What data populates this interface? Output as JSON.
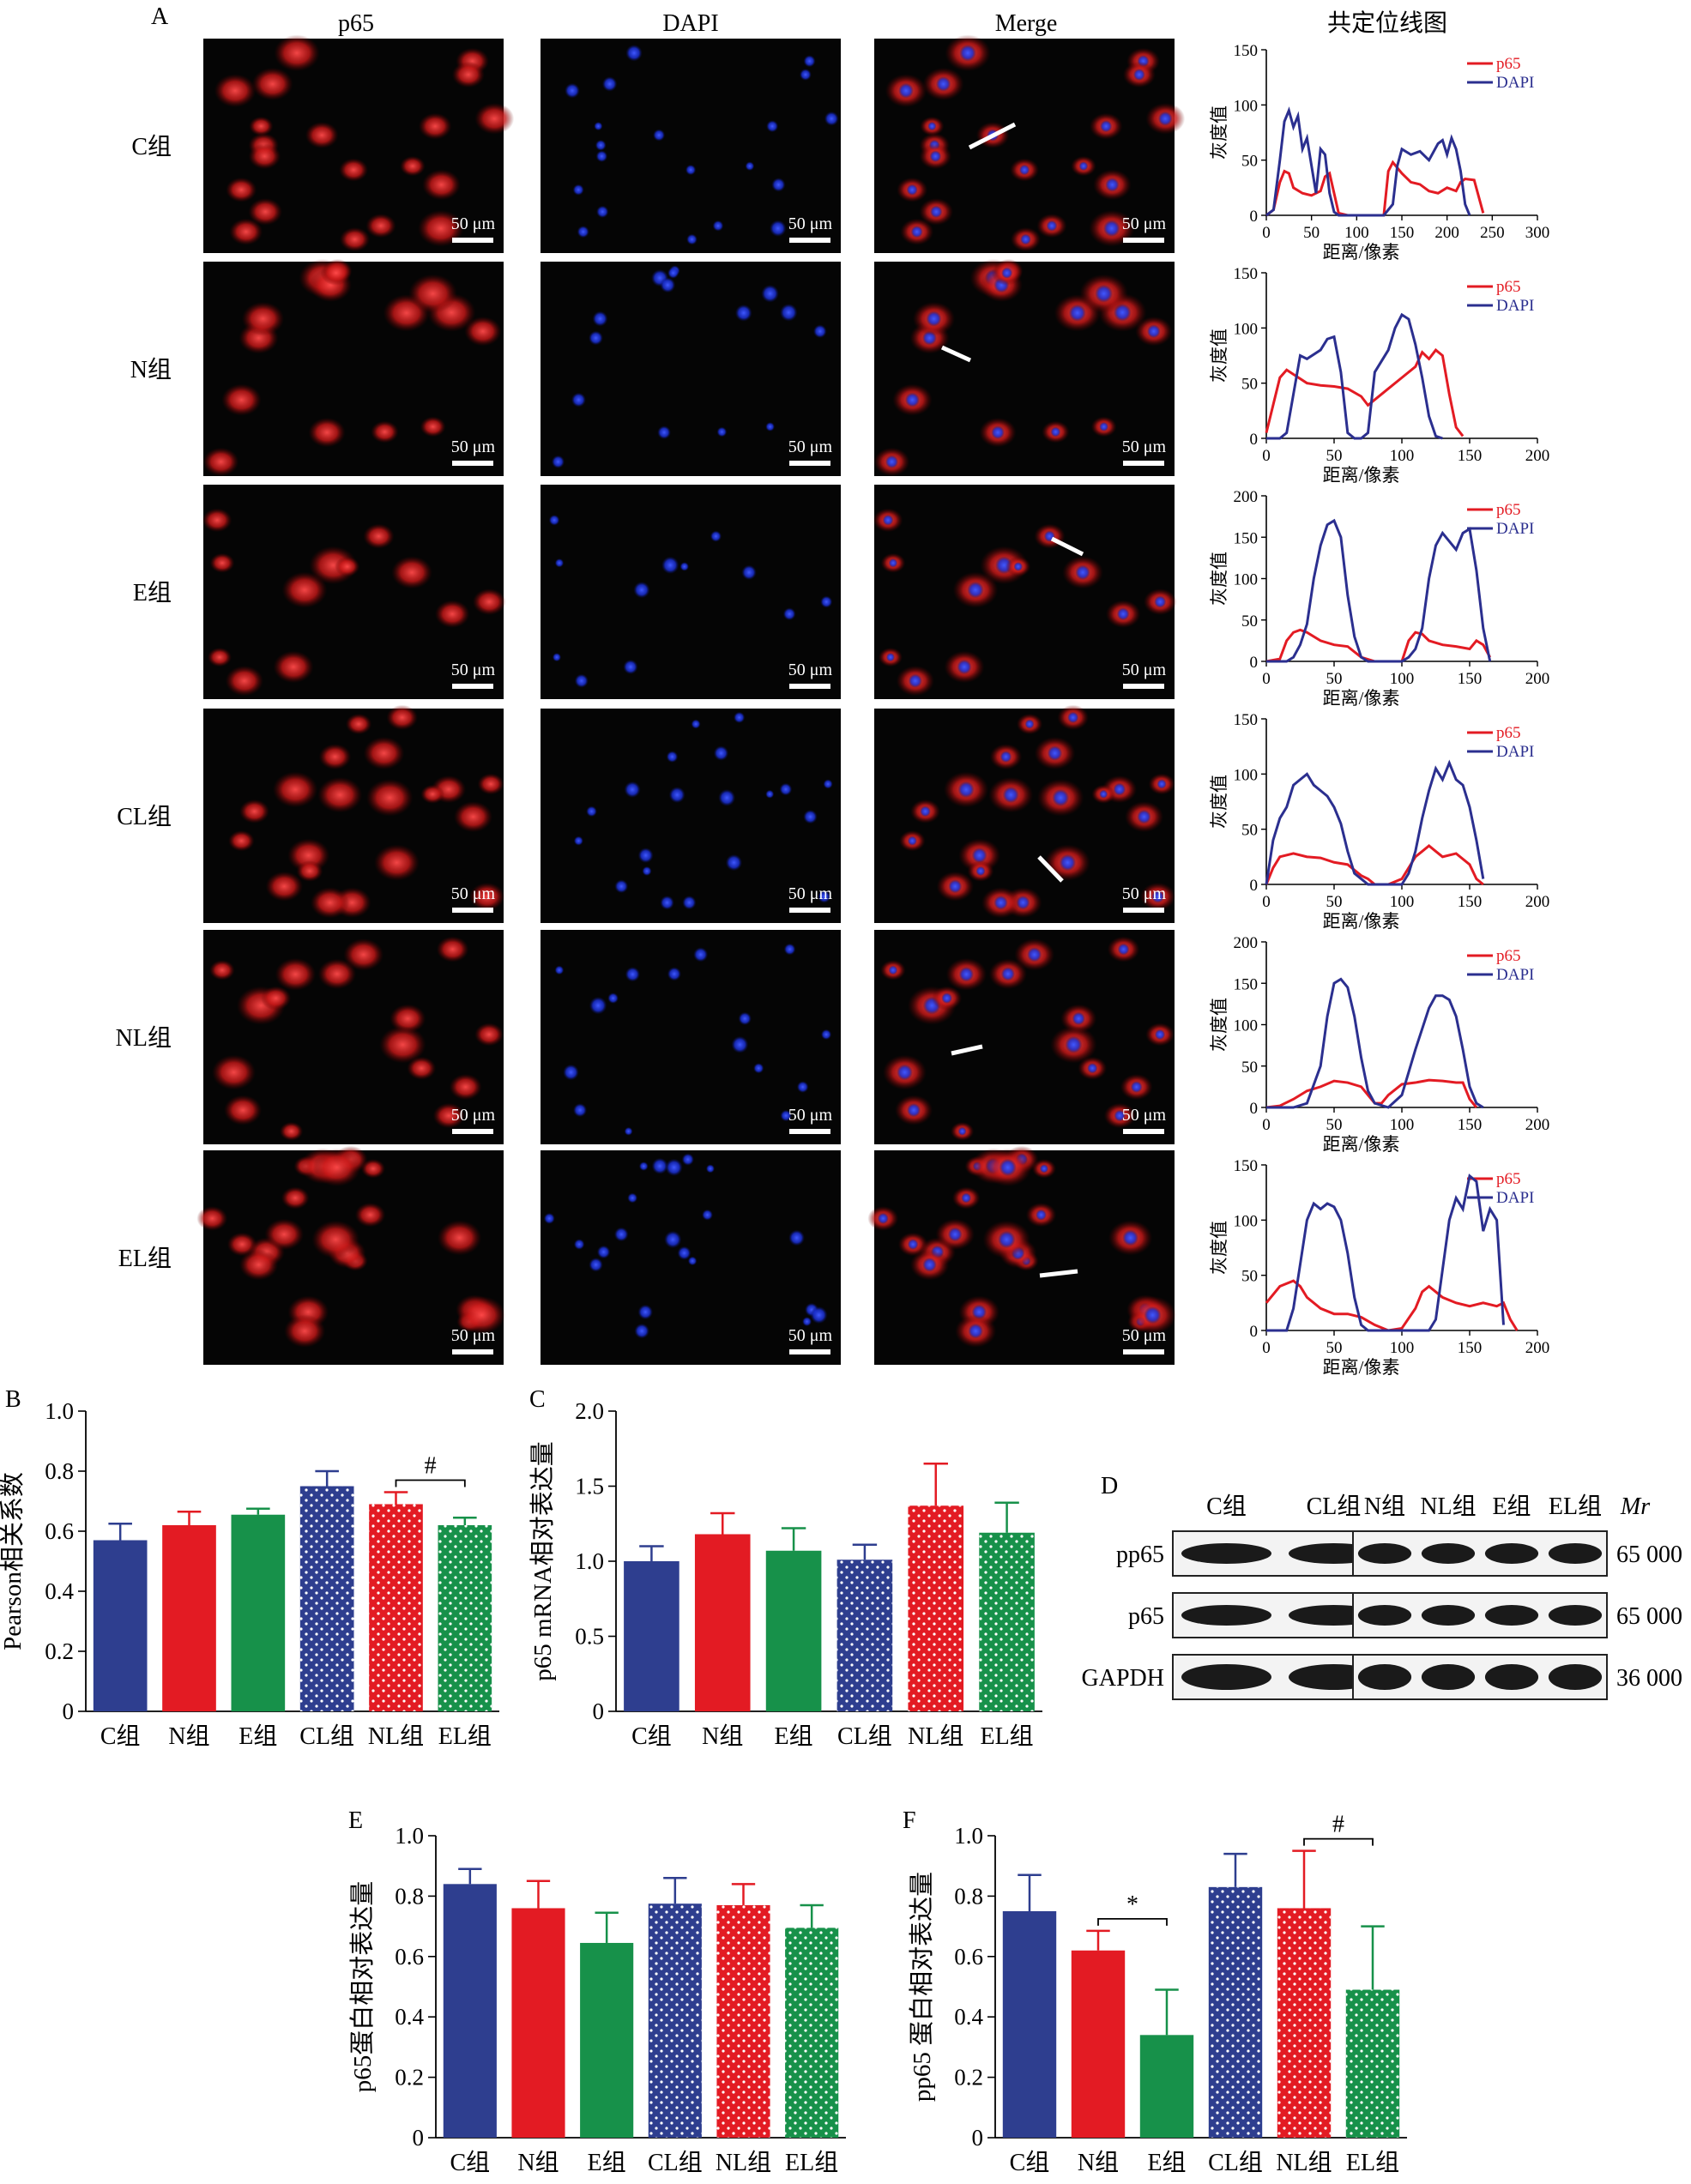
{
  "panel_labels": {
    "A": "A",
    "B": "B",
    "C": "C",
    "D": "D",
    "E": "E",
    "F": "F"
  },
  "panel_a": {
    "column_headers": [
      "p65",
      "DAPI",
      "Merge",
      "共定位线图"
    ],
    "row_labels": [
      "C组",
      "N组",
      "E组",
      "CL组",
      "NL组",
      "EL组"
    ],
    "scale_bar_label": "50 μm",
    "colors": {
      "p65": "#e31b23",
      "dapi": "#2b2f8f",
      "background": "#050505",
      "line": "#ffffff"
    }
  },
  "chart_data": [
    {
      "type": "line",
      "panel": "A",
      "row": "C组",
      "xlabel": "距离/像素",
      "ylabel": "灰度值",
      "xlim": [
        0,
        300
      ],
      "xticks": [
        0,
        50,
        100,
        150,
        200,
        250,
        300
      ],
      "ylim": [
        0,
        150
      ],
      "yticks": [
        0,
        50,
        100,
        150
      ],
      "series": [
        {
          "name": "p65",
          "color": "#e31b23",
          "x": [
            0,
            8,
            15,
            20,
            25,
            30,
            40,
            50,
            60,
            65,
            70,
            75,
            80,
            90,
            100,
            110,
            120,
            130,
            135,
            140,
            150,
            160,
            170,
            180,
            190,
            200,
            210,
            215,
            220,
            230,
            240
          ],
          "y": [
            0,
            5,
            30,
            40,
            38,
            25,
            20,
            18,
            22,
            35,
            38,
            20,
            2,
            0,
            0,
            0,
            0,
            0,
            40,
            48,
            38,
            30,
            28,
            22,
            20,
            25,
            22,
            30,
            33,
            32,
            2
          ]
        },
        {
          "name": "DAPI",
          "color": "#2b2f8f",
          "x": [
            0,
            8,
            15,
            20,
            25,
            30,
            35,
            40,
            45,
            50,
            55,
            60,
            65,
            70,
            75,
            80,
            100,
            120,
            130,
            140,
            145,
            150,
            160,
            170,
            180,
            190,
            195,
            200,
            205,
            210,
            215,
            220,
            225
          ],
          "y": [
            0,
            5,
            50,
            85,
            95,
            80,
            90,
            60,
            70,
            45,
            20,
            60,
            55,
            20,
            3,
            0,
            0,
            0,
            0,
            10,
            45,
            60,
            55,
            58,
            50,
            65,
            68,
            55,
            70,
            60,
            40,
            10,
            0
          ]
        }
      ]
    },
    {
      "type": "line",
      "panel": "A",
      "row": "N组",
      "xlabel": "距离/像素",
      "ylabel": "灰度值",
      "xlim": [
        0,
        200
      ],
      "xticks": [
        0,
        50,
        100,
        150,
        200
      ],
      "ylim": [
        0,
        150
      ],
      "yticks": [
        0,
        50,
        100,
        150
      ],
      "series": [
        {
          "name": "p65",
          "color": "#e31b23",
          "x": [
            0,
            5,
            10,
            15,
            20,
            30,
            40,
            50,
            60,
            70,
            75,
            80,
            90,
            100,
            110,
            115,
            120,
            125,
            130,
            135,
            140,
            145
          ],
          "y": [
            5,
            30,
            55,
            62,
            58,
            50,
            48,
            47,
            45,
            38,
            30,
            35,
            45,
            55,
            65,
            78,
            72,
            80,
            75,
            40,
            10,
            2
          ]
        },
        {
          "name": "DAPI",
          "color": "#2b2f8f",
          "x": [
            0,
            10,
            15,
            20,
            25,
            30,
            40,
            45,
            50,
            55,
            60,
            65,
            70,
            75,
            80,
            90,
            95,
            100,
            105,
            110,
            115,
            120,
            125,
            130
          ],
          "y": [
            0,
            0,
            5,
            40,
            75,
            72,
            80,
            90,
            92,
            60,
            5,
            0,
            0,
            5,
            60,
            80,
            100,
            112,
            108,
            85,
            55,
            20,
            2,
            0
          ]
        }
      ]
    },
    {
      "type": "line",
      "panel": "A",
      "row": "E组",
      "xlabel": "距离/像素",
      "ylabel": "灰度值",
      "xlim": [
        0,
        200
      ],
      "xticks": [
        0,
        50,
        100,
        150,
        200
      ],
      "ylim": [
        0,
        200
      ],
      "yticks": [
        0,
        50,
        100,
        150,
        200
      ],
      "series": [
        {
          "name": "p65",
          "color": "#e31b23",
          "x": [
            0,
            10,
            15,
            20,
            25,
            30,
            40,
            50,
            60,
            70,
            80,
            90,
            100,
            105,
            110,
            115,
            120,
            130,
            140,
            150,
            155,
            160,
            165
          ],
          "y": [
            0,
            3,
            25,
            35,
            38,
            35,
            25,
            20,
            18,
            5,
            0,
            0,
            0,
            25,
            35,
            33,
            25,
            20,
            18,
            15,
            25,
            20,
            5
          ]
        },
        {
          "name": "DAPI",
          "color": "#2b2f8f",
          "x": [
            0,
            15,
            20,
            25,
            30,
            35,
            40,
            45,
            50,
            55,
            60,
            65,
            70,
            75,
            100,
            105,
            110,
            115,
            120,
            125,
            130,
            135,
            140,
            145,
            150,
            155,
            160,
            165
          ],
          "y": [
            0,
            0,
            5,
            20,
            45,
            100,
            140,
            165,
            170,
            150,
            80,
            30,
            5,
            0,
            0,
            5,
            15,
            40,
            100,
            140,
            155,
            145,
            135,
            155,
            160,
            110,
            40,
            0
          ]
        }
      ]
    },
    {
      "type": "line",
      "panel": "A",
      "row": "CL组",
      "xlabel": "距离/像素",
      "ylabel": "灰度值",
      "xlim": [
        0,
        200
      ],
      "xticks": [
        0,
        50,
        100,
        150,
        200
      ],
      "ylim": [
        0,
        150
      ],
      "yticks": [
        0,
        50,
        100,
        150
      ],
      "series": [
        {
          "name": "p65",
          "color": "#e31b23",
          "x": [
            0,
            5,
            10,
            20,
            30,
            40,
            50,
            60,
            70,
            75,
            80,
            90,
            100,
            110,
            115,
            120,
            125,
            130,
            140,
            150,
            155,
            160
          ],
          "y": [
            0,
            15,
            25,
            28,
            25,
            24,
            20,
            18,
            8,
            5,
            0,
            0,
            5,
            25,
            30,
            35,
            30,
            25,
            28,
            18,
            5,
            0
          ]
        },
        {
          "name": "DAPI",
          "color": "#2b2f8f",
          "x": [
            0,
            5,
            10,
            15,
            20,
            25,
            30,
            35,
            40,
            45,
            50,
            55,
            60,
            65,
            70,
            75,
            80,
            100,
            105,
            110,
            115,
            120,
            125,
            130,
            135,
            140,
            145,
            150,
            155,
            160
          ],
          "y": [
            0,
            40,
            60,
            70,
            90,
            95,
            100,
            90,
            85,
            80,
            70,
            55,
            30,
            10,
            5,
            0,
            0,
            0,
            10,
            30,
            60,
            85,
            105,
            95,
            110,
            95,
            90,
            70,
            40,
            5
          ]
        }
      ]
    },
    {
      "type": "line",
      "panel": "A",
      "row": "NL组",
      "xlabel": "距离/像素",
      "ylabel": "灰度值",
      "xlim": [
        0,
        200
      ],
      "xticks": [
        0,
        50,
        100,
        150,
        200
      ],
      "ylim": [
        0,
        200
      ],
      "yticks": [
        0,
        50,
        100,
        150,
        200
      ],
      "series": [
        {
          "name": "p65",
          "color": "#e31b23",
          "x": [
            0,
            10,
            20,
            30,
            40,
            50,
            60,
            70,
            75,
            80,
            85,
            90,
            100,
            110,
            120,
            130,
            140,
            145,
            150,
            155
          ],
          "y": [
            0,
            2,
            10,
            20,
            25,
            32,
            30,
            25,
            15,
            5,
            5,
            15,
            28,
            30,
            33,
            32,
            30,
            30,
            10,
            0
          ]
        },
        {
          "name": "DAPI",
          "color": "#2b2f8f",
          "x": [
            0,
            20,
            30,
            40,
            45,
            50,
            55,
            60,
            65,
            70,
            75,
            80,
            90,
            100,
            110,
            120,
            125,
            130,
            135,
            140,
            145,
            150,
            155,
            160
          ],
          "y": [
            0,
            0,
            5,
            50,
            110,
            150,
            155,
            145,
            110,
            60,
            20,
            5,
            0,
            15,
            70,
            120,
            135,
            135,
            130,
            110,
            70,
            25,
            5,
            0
          ]
        }
      ]
    },
    {
      "type": "line",
      "panel": "A",
      "row": "EL组",
      "xlabel": "距离/像素",
      "ylabel": "灰度值",
      "xlim": [
        0,
        200
      ],
      "xticks": [
        0,
        50,
        100,
        150,
        200
      ],
      "ylim": [
        0,
        150
      ],
      "yticks": [
        0,
        50,
        100,
        150
      ],
      "series": [
        {
          "name": "p65",
          "color": "#e31b23",
          "x": [
            0,
            10,
            20,
            25,
            30,
            40,
            50,
            60,
            70,
            80,
            90,
            100,
            110,
            115,
            120,
            125,
            130,
            140,
            150,
            160,
            170,
            175,
            180,
            185
          ],
          "y": [
            25,
            40,
            45,
            40,
            30,
            20,
            15,
            15,
            12,
            5,
            0,
            2,
            20,
            35,
            40,
            35,
            30,
            25,
            22,
            25,
            22,
            25,
            10,
            0
          ]
        },
        {
          "name": "DAPI",
          "color": "#2b2f8f",
          "x": [
            0,
            15,
            20,
            25,
            30,
            35,
            40,
            45,
            50,
            55,
            60,
            65,
            70,
            75,
            100,
            120,
            125,
            130,
            135,
            140,
            145,
            150,
            155,
            160,
            165,
            170,
            175
          ],
          "y": [
            0,
            0,
            20,
            60,
            100,
            115,
            110,
            115,
            112,
            100,
            70,
            30,
            5,
            0,
            0,
            0,
            10,
            55,
            100,
            120,
            110,
            140,
            135,
            90,
            110,
            100,
            5
          ]
        }
      ]
    },
    {
      "type": "bar",
      "panel": "B",
      "ylabel": "Pearson相关系数",
      "ylim": [
        0,
        1.0
      ],
      "yticks": [
        0,
        0.2,
        0.4,
        0.6,
        0.8,
        1.0
      ],
      "categories": [
        "C组",
        "N组",
        "E组",
        "CL组",
        "NL组",
        "EL组"
      ],
      "values": [
        0.57,
        0.62,
        0.655,
        0.75,
        0.69,
        0.62
      ],
      "errors": [
        0.055,
        0.045,
        0.02,
        0.05,
        0.04,
        0.025
      ],
      "significance": [
        {
          "from": 4,
          "to": 5,
          "label": "#"
        }
      ]
    },
    {
      "type": "bar",
      "panel": "C",
      "ylabel": "p65 mRNA相对表达量",
      "ylim": [
        0,
        2.0
      ],
      "yticks": [
        0,
        0.5,
        1.0,
        1.5,
        2.0
      ],
      "categories": [
        "C组",
        "N组",
        "E组",
        "CL组",
        "NL组",
        "EL组"
      ],
      "values": [
        1.0,
        1.18,
        1.07,
        1.01,
        1.37,
        1.19
      ],
      "errors": [
        0.1,
        0.14,
        0.15,
        0.1,
        0.28,
        0.2
      ],
      "significance": []
    },
    {
      "type": "bar",
      "panel": "E",
      "ylabel": "p65蛋白相对表达量",
      "ylim": [
        0,
        1.0
      ],
      "yticks": [
        0,
        0.2,
        0.4,
        0.6,
        0.8,
        1.0
      ],
      "categories": [
        "C组",
        "N组",
        "E组",
        "CL组",
        "NL组",
        "EL组"
      ],
      "values": [
        0.84,
        0.76,
        0.645,
        0.775,
        0.77,
        0.695
      ],
      "errors": [
        0.05,
        0.09,
        0.1,
        0.085,
        0.07,
        0.075
      ],
      "significance": []
    },
    {
      "type": "bar",
      "panel": "F",
      "ylabel": "pp65 蛋白相对表达量",
      "ylim": [
        0,
        1.0
      ],
      "yticks": [
        0,
        0.2,
        0.4,
        0.6,
        0.8,
        1.0
      ],
      "categories": [
        "C组",
        "N组",
        "E组",
        "CL组",
        "NL组",
        "EL组"
      ],
      "values": [
        0.75,
        0.62,
        0.34,
        0.83,
        0.76,
        0.49
      ],
      "errors": [
        0.12,
        0.065,
        0.15,
        0.11,
        0.19,
        0.21
      ],
      "significance": [
        {
          "from": 1,
          "to": 2,
          "label": "*"
        },
        {
          "from": 4,
          "to": 5,
          "label": "#"
        }
      ]
    }
  ],
  "bar_colors": [
    "#2e3e8f",
    "#e31b23",
    "#17914a",
    "#2e3e8f",
    "#e31b23",
    "#17914a"
  ],
  "dotted_bar_indices": [
    3,
    4,
    5
  ],
  "western_blot": {
    "lane_labels_left": [
      "C组",
      "CL组"
    ],
    "lane_labels_right": [
      "N组",
      "NL组",
      "E组",
      "EL组"
    ],
    "mr_label": "Mr",
    "rows": [
      {
        "label": "pp65",
        "mr": "65 000"
      },
      {
        "label": "p65",
        "mr": "65 000"
      },
      {
        "label": "GAPDH",
        "mr": "36 000"
      }
    ]
  }
}
